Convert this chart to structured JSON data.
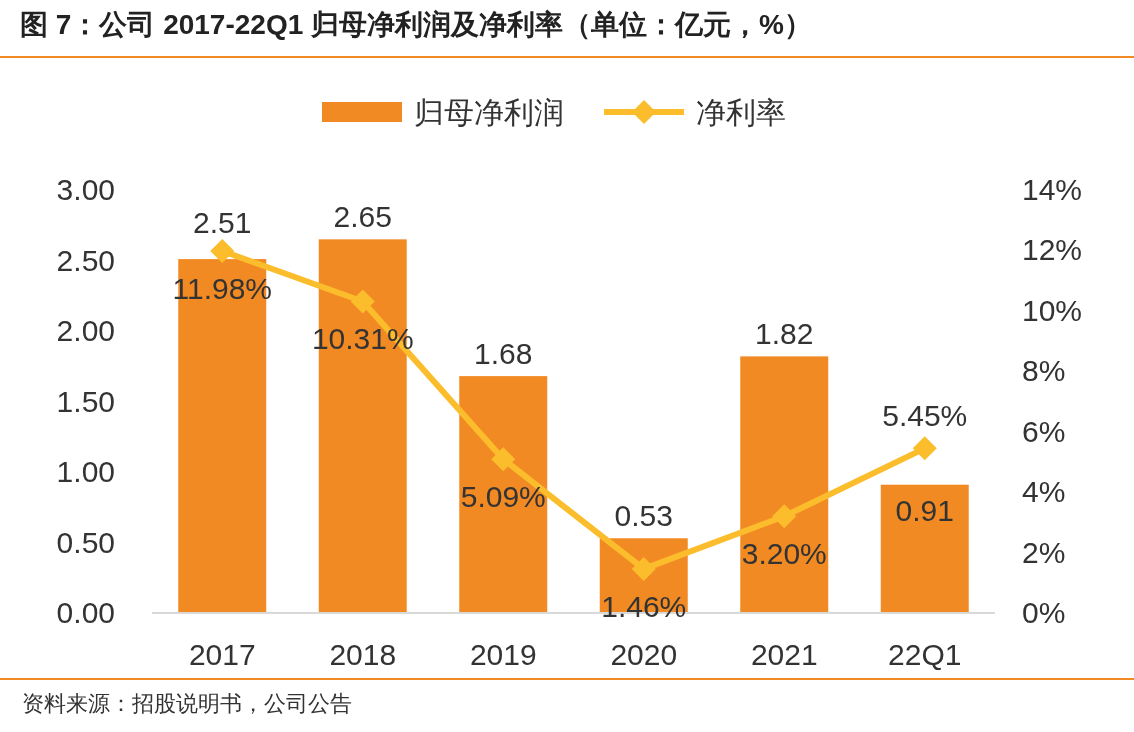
{
  "chart_data": {
    "type": "bar",
    "title": "图 7：公司 2017-22Q1 归母净利润及净利率（单位：亿元，%）",
    "categories": [
      "2017",
      "2018",
      "2019",
      "2020",
      "2021",
      "22Q1"
    ],
    "series": [
      {
        "name": "归母净利润",
        "color": "#f28a24",
        "values": [
          2.51,
          2.65,
          1.68,
          0.53,
          1.82,
          0.91
        ],
        "value_labels": [
          "2.51",
          "2.65",
          "1.68",
          "0.53",
          "1.82",
          "0.91"
        ]
      },
      {
        "name": "净利率",
        "type": "line",
        "axis": "y2",
        "color": "#fbbd2c",
        "marker": "diamond",
        "values": [
          11.98,
          10.31,
          5.09,
          1.46,
          3.2,
          5.45
        ],
        "value_labels": [
          "11.98%",
          "10.31%",
          "5.09%",
          "1.46%",
          "3.20%",
          "5.45%"
        ]
      }
    ],
    "ylim": [
      0,
      3
    ],
    "yticks": [
      {
        "value": 0,
        "label": "0.00"
      },
      {
        "value": 0.5,
        "label": "0.50"
      },
      {
        "value": 1,
        "label": "1.00"
      },
      {
        "value": 1.5,
        "label": "1.50"
      },
      {
        "value": 2,
        "label": "2.00"
      },
      {
        "value": 2.5,
        "label": "2.50"
      },
      {
        "value": 3,
        "label": "3.00"
      }
    ],
    "y2lim": [
      0,
      14
    ],
    "y2ticks": [
      {
        "value": 0,
        "label": "0%"
      },
      {
        "value": 2,
        "label": "2%"
      },
      {
        "value": 4,
        "label": "4%"
      },
      {
        "value": 6,
        "label": "6%"
      },
      {
        "value": 8,
        "label": "8%"
      },
      {
        "value": 10,
        "label": "10%"
      },
      {
        "value": 12,
        "label": "12%"
      },
      {
        "value": 14,
        "label": "14%"
      }
    ],
    "legend": "top",
    "grid": false,
    "annotations": [
      "资料来源：招股说明书，公司公告"
    ]
  }
}
